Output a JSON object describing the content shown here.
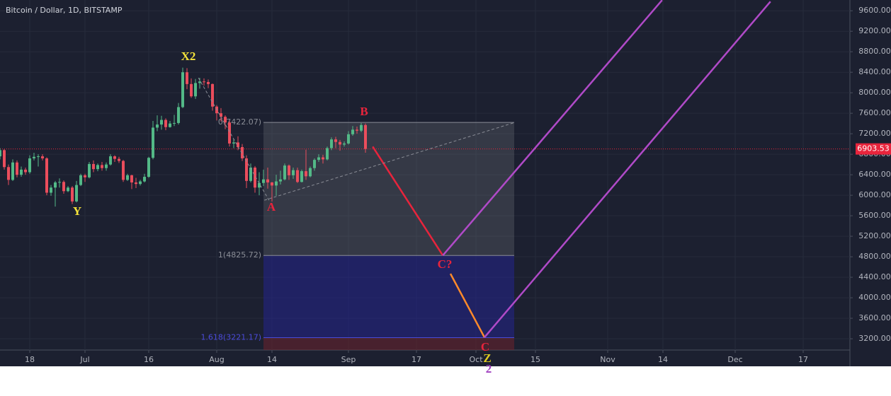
{
  "chart_data": {
    "type": "candlestick",
    "title": "Bitcoin / Dollar, 1D, BITSTAMP",
    "x": [
      0,
      1,
      2,
      3,
      4,
      5,
      6,
      7,
      8,
      9,
      10,
      11,
      12,
      13,
      14,
      15,
      16,
      17,
      18,
      19,
      20,
      21,
      22,
      23,
      24,
      25,
      26,
      27,
      28,
      29,
      30,
      31,
      32,
      33,
      34,
      35,
      36,
      37,
      38,
      39,
      40,
      41,
      42,
      43,
      44,
      45,
      46,
      47,
      48,
      49,
      50,
      51,
      52,
      53,
      54,
      55,
      56,
      57,
      58,
      59,
      60,
      61,
      62,
      63,
      64,
      65,
      66,
      67,
      68,
      69,
      70,
      71,
      72,
      73,
      74,
      75,
      76,
      77,
      78,
      79,
      80,
      81,
      82,
      83,
      84,
      85,
      86
    ],
    "open": [
      6760,
      6880,
      6550,
      6300,
      6640,
      6400,
      6500,
      6450,
      6720,
      6750,
      6760,
      6720,
      6050,
      6150,
      6250,
      6260,
      6080,
      6150,
      5880,
      6200,
      6390,
      6350,
      6610,
      6510,
      6590,
      6530,
      6600,
      6760,
      6710,
      6670,
      6300,
      6390,
      6250,
      6220,
      6270,
      6360,
      6730,
      7320,
      7380,
      7470,
      7330,
      7400,
      7410,
      7720,
      8400,
      8170,
      7930,
      8190,
      8220,
      8210,
      8170,
      7730,
      7600,
      7530,
      7420,
      7010,
      7030,
      6940,
      6720,
      6280,
      6540,
      6150,
      6240,
      6310,
      6250,
      6190,
      6270,
      6310,
      6580,
      6390,
      6490,
      6260,
      6470,
      6370,
      6530,
      6690,
      6740,
      6700,
      6920,
      7090,
      7040,
      6990,
      7010,
      7190,
      7280,
      7260,
      7370
    ],
    "high": [
      6920,
      6900,
      6600,
      6700,
      6680,
      6560,
      6540,
      6780,
      6830,
      6800,
      6800,
      6740,
      6200,
      6280,
      6330,
      6290,
      6180,
      6180,
      6280,
      6420,
      6420,
      6650,
      6680,
      6620,
      6650,
      6640,
      6800,
      6780,
      6750,
      6690,
      6420,
      6400,
      6340,
      6300,
      6420,
      6750,
      7450,
      7560,
      7550,
      7500,
      7450,
      7570,
      7800,
      8490,
      8480,
      8280,
      8270,
      8290,
      8280,
      8260,
      8180,
      7760,
      7700,
      7560,
      7460,
      7090,
      7150,
      7000,
      6780,
      6620,
      6570,
      6450,
      6500,
      6540,
      6260,
      6400,
      6480,
      6620,
      6600,
      6540,
      6540,
      6500,
      6890,
      6560,
      6720,
      6800,
      6790,
      6950,
      7130,
      7140,
      7080,
      7050,
      7250,
      7350,
      7340,
      7410,
      7400
    ],
    "low": [
      6700,
      6500,
      6200,
      6280,
      6350,
      6360,
      6400,
      6420,
      6680,
      6560,
      6680,
      6000,
      5990,
      5780,
      6150,
      6030,
      6060,
      5830,
      5860,
      6180,
      6260,
      6330,
      6450,
      6470,
      6480,
      6480,
      6580,
      6650,
      6630,
      6260,
      6280,
      6120,
      6140,
      6190,
      6250,
      6340,
      6700,
      7250,
      7280,
      7270,
      7320,
      7350,
      7380,
      7700,
      8070,
      7900,
      7880,
      8080,
      8140,
      8090,
      7650,
      7460,
      7440,
      7290,
      6950,
      6920,
      6880,
      6670,
      6140,
      6250,
      6050,
      6000,
      6180,
      6130,
      5880,
      5990,
      6210,
      6290,
      6300,
      6320,
      6240,
      6250,
      6300,
      6350,
      6480,
      6650,
      6620,
      6680,
      6880,
      6920,
      6870,
      6950,
      6990,
      7160,
      7200,
      7230,
      6830
    ],
    "close": [
      6880,
      6550,
      6300,
      6640,
      6400,
      6500,
      6450,
      6720,
      6750,
      6760,
      6720,
      6050,
      6150,
      6250,
      6260,
      6080,
      6150,
      5880,
      6200,
      6390,
      6350,
      6610,
      6510,
      6590,
      6530,
      6600,
      6760,
      6710,
      6670,
      6300,
      6390,
      6250,
      6220,
      6270,
      6360,
      6730,
      7320,
      7380,
      7470,
      7330,
      7400,
      7410,
      7720,
      8400,
      8170,
      7930,
      8190,
      8220,
      8210,
      8170,
      7730,
      7600,
      7530,
      7420,
      7010,
      7030,
      6940,
      6720,
      6280,
      6540,
      6150,
      6240,
      6310,
      6250,
      6190,
      6270,
      6310,
      6580,
      6390,
      6490,
      6260,
      6470,
      6370,
      6530,
      6690,
      6740,
      6700,
      6920,
      7090,
      7040,
      6990,
      7010,
      7190,
      7280,
      7260,
      7370,
      6903.53
    ],
    "up_color": "#53b987",
    "down_color": "#eb4d5c",
    "xlim": [
      0,
      200
    ],
    "xticks": [
      {
        "value": 7,
        "label": "18"
      },
      {
        "value": 20,
        "label": "Jul"
      },
      {
        "value": 35,
        "label": "16"
      },
      {
        "value": 51,
        "label": "Aug"
      },
      {
        "value": 64,
        "label": "14"
      },
      {
        "value": 82,
        "label": "Sep"
      },
      {
        "value": 98,
        "label": "17"
      },
      {
        "value": 112,
        "label": "Oct"
      },
      {
        "value": 126,
        "label": "15"
      },
      {
        "value": 143,
        "label": "Nov"
      },
      {
        "value": 156,
        "label": "14"
      },
      {
        "value": 173,
        "label": "Dec"
      },
      {
        "value": 189,
        "label": "17"
      }
    ],
    "ylim": [
      2980,
      9810
    ],
    "yticks": [
      {
        "value": 3200,
        "label": "3200.00"
      },
      {
        "value": 3600,
        "label": "3600.00"
      },
      {
        "value": 4000,
        "label": "4000.00"
      },
      {
        "value": 4400,
        "label": "4400.00"
      },
      {
        "value": 4800,
        "label": "4800.00"
      },
      {
        "value": 5200,
        "label": "5200.00"
      },
      {
        "value": 5600,
        "label": "5600.00"
      },
      {
        "value": 6000,
        "label": "6000.00"
      },
      {
        "value": 6400,
        "label": "6400.00"
      },
      {
        "value": 6800,
        "label": "6800.00"
      },
      {
        "value": 7200,
        "label": "7200.00"
      },
      {
        "value": 7600,
        "label": "7600.00"
      },
      {
        "value": 8000,
        "label": "8000.00"
      },
      {
        "value": 8400,
        "label": "8400.00"
      },
      {
        "value": 8800,
        "label": "8800.00"
      },
      {
        "value": 9200,
        "label": "9200.00"
      },
      {
        "value": 9600,
        "label": "9600.00"
      }
    ],
    "grid": true,
    "last_price": 6903.53,
    "last_price_color": "#e8243c",
    "fibonacci": {
      "x_range": [
        62,
        121
      ],
      "levels": [
        {
          "value": 7422.07,
          "label": "0(7422.07)",
          "color": "#8a8d96"
        },
        {
          "value": 4825.72,
          "label": "1(4825.72)",
          "color": "#8a8d96"
        },
        {
          "value": 3221.17,
          "label": "1.618(3221.17)",
          "color": "#4a4ad8"
        }
      ],
      "zone_colors": [
        "rgba(120,122,130,0.28)",
        "rgba(35,35,150,0.5)",
        "rgba(110,35,45,0.55)"
      ]
    },
    "drawings": [
      {
        "color": "#e8243c",
        "dashed": false,
        "x": [
          87.7,
          104.2
        ],
        "y": [
          6950,
          4826
        ]
      },
      {
        "color": "#ff8a2a",
        "dashed": false,
        "x": [
          106,
          114
        ],
        "y": [
          4469,
          3228
        ]
      },
      {
        "color": "#b04ac8",
        "dashed": false,
        "x": [
          104.2,
          155.8
        ],
        "y": [
          4826,
          9807
        ]
      },
      {
        "color": "#b04ac8",
        "dashed": false,
        "x": [
          114,
          181.3
        ],
        "y": [
          3228,
          9780
        ]
      },
      {
        "color": "#8a8d96",
        "dashed": true,
        "x": [
          46.7,
          63.3
        ],
        "y": [
          8290,
          5903
        ]
      },
      {
        "color": "#8a8d96",
        "dashed": true,
        "x": [
          62.2,
          121.2
        ],
        "y": [
          5903,
          7422
        ]
      }
    ],
    "annotations": [
      {
        "text": "X2",
        "color": "#f5e33a"
      },
      {
        "text": "Y",
        "color": "#f5e33a"
      },
      {
        "text": "A",
        "color": "#e8243c"
      },
      {
        "text": "B",
        "color": "#e8243c"
      },
      {
        "text": "C?",
        "color": "#e8243c"
      },
      {
        "text": "C",
        "color": "#e8243c"
      },
      {
        "text": "Z",
        "color": "#e0cc20"
      },
      {
        "text": "2",
        "color": "#a040c0"
      }
    ]
  }
}
